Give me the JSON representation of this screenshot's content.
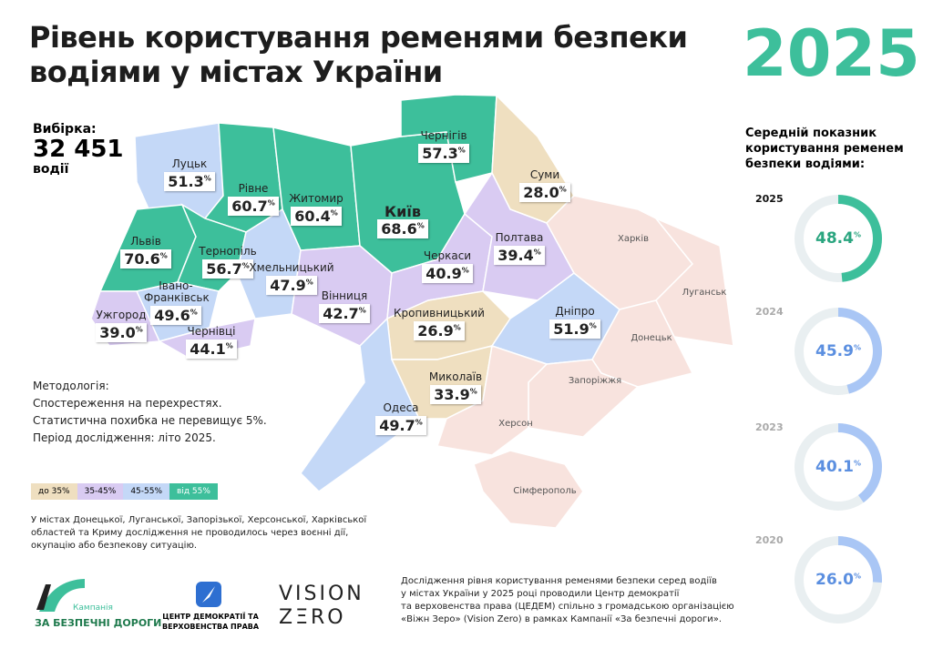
{
  "title_lines": [
    "Рівень користування ременями безпеки",
    "водіями у містах України"
  ],
  "year": "2025",
  "sample": {
    "label": "Вибірка:",
    "value": "32 451",
    "unit": "водії"
  },
  "methodology": [
    "Методологія:",
    "Спостереження на перехрестях.",
    "Статистична похибка не перевищує 5%.",
    "Період дослідження: літо 2025."
  ],
  "legend": [
    {
      "label": "до 35%",
      "color": "#efdfc0"
    },
    {
      "label": "35-45%",
      "color": "#d9cbf2"
    },
    {
      "label": "45-55%",
      "color": "#c4d8f7"
    },
    {
      "label": "від 55%",
      "color": "#3dbf9b"
    }
  ],
  "cities": [
    {
      "name": "Чернігів",
      "value": "57.3",
      "unit": "%"
    },
    {
      "name": "Суми",
      "value": "28.0",
      "unit": "%"
    },
    {
      "name": "Луцьк",
      "value": "51.3",
      "unit": "%"
    },
    {
      "name": "Рівне",
      "value": "60.7",
      "unit": "%"
    },
    {
      "name": "Житомир",
      "value": "60.4",
      "unit": "%"
    },
    {
      "name": "Київ",
      "value": "68.6",
      "unit": "%"
    },
    {
      "name": "Львів",
      "value": "70.6",
      "unit": "%"
    },
    {
      "name": "Тернопіль",
      "value": "56.7",
      "unit": "%"
    },
    {
      "name": "Хмельницький",
      "value": "47.9",
      "unit": "%"
    },
    {
      "name": "Черкаси",
      "value": "40.9",
      "unit": "%"
    },
    {
      "name": "Полтава",
      "value": "39.4",
      "unit": "%"
    },
    {
      "name": "Вінниця",
      "value": "42.7",
      "unit": "%"
    },
    {
      "name": "Ужгород",
      "value": "39.0",
      "unit": "%"
    },
    {
      "name": "Івано-Франківськ",
      "value": "49.6",
      "unit": "%"
    },
    {
      "name": "Чернівці",
      "value": "44.1",
      "unit": "%"
    },
    {
      "name": "Кропивницький",
      "value": "26.9",
      "unit": "%"
    },
    {
      "name": "Дніпро",
      "value": "51.9",
      "unit": "%"
    },
    {
      "name": "Миколаїв",
      "value": "33.9",
      "unit": "%"
    },
    {
      "name": "Одеса",
      "value": "49.7",
      "unit": "%"
    }
  ],
  "other_cities": [
    "Харків",
    "Луганськ",
    "Донецьк",
    "Запоріжжя",
    "Херсон",
    "Сімферополь"
  ],
  "note": [
    "У містах Донецької, Луганської, Запорізької, Херсонської, Харківської",
    "областей та Криму дослідження не проводилось через воєнні дії,",
    "окупацію або безпекову ситуацію."
  ],
  "average": {
    "title_lines": [
      "Середній показник",
      "користування ременем",
      "безпеки водіями:"
    ],
    "years": [
      {
        "year": "2025",
        "value": 48.4,
        "label": "48.4",
        "unit": "%",
        "color": "#3dbf9b"
      },
      {
        "year": "2024",
        "value": 45.9,
        "label": "45.9",
        "unit": "%",
        "color": "#a9c6f5"
      },
      {
        "year": "2023",
        "value": 40.1,
        "label": "40.1",
        "unit": "%",
        "color": "#a9c6f5"
      },
      {
        "year": "2020",
        "value": 26,
        "label": "26.0",
        "unit": "%",
        "color": "#a9c6f5"
      }
    ]
  },
  "logos": {
    "campaign_top": "Кампанія",
    "campaign": "ЗА БЕЗПЕЧНІ ДОРОГИ",
    "cedem": [
      "ЦЕНТР ДЕМОКРАТІЇ ТА",
      "ВЕРХОВЕНСТВА ПРАВА"
    ],
    "vision": [
      "VISION",
      "ZΞRO"
    ]
  },
  "footer": [
    "Дослідження рівня користування ременями безпеки серед водіїв",
    "у містах України у 2025 році проводили Центр демократії",
    "та верховенства права (ЦЕДЕМ) спільно з громадською організацією",
    "«Віжн Зеро» (Vision Zero) в рамках Кампанії «За безпечні дороги»."
  ]
}
